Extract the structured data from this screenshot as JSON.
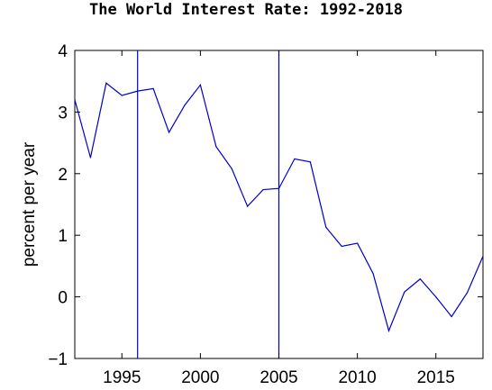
{
  "chart_data": {
    "type": "line",
    "title": "The World Interest Rate: 1992-2018",
    "xlabel": "",
    "ylabel": "percent per year",
    "xlim": [
      1992,
      2018
    ],
    "ylim": [
      -1,
      4
    ],
    "xticks": [
      1995,
      2000,
      2005,
      2010,
      2015
    ],
    "yticks": [
      -1,
      0,
      1,
      2,
      3,
      4
    ],
    "grid": false,
    "legend": "none",
    "line_color": "#0000cc",
    "vertical_lines": [
      1996,
      2005
    ],
    "series": [
      {
        "x": [
          1992,
          1993,
          1994,
          1995,
          1996,
          1997,
          1998,
          1999,
          2000,
          2001,
          2002,
          2003,
          2004,
          2005,
          2006,
          2007,
          2008,
          2009,
          2010,
          2011,
          2012,
          2013,
          2014,
          2015,
          2016,
          2017,
          2018
        ],
        "values": [
          3.2,
          2.26,
          3.47,
          3.27,
          3.34,
          3.38,
          2.67,
          3.11,
          3.44,
          2.44,
          2.08,
          1.47,
          1.74,
          1.76,
          2.24,
          2.19,
          1.13,
          0.82,
          0.87,
          0.38,
          -0.55,
          0.08,
          0.29,
          0.0,
          -0.32,
          0.07,
          0.66
        ]
      }
    ]
  }
}
